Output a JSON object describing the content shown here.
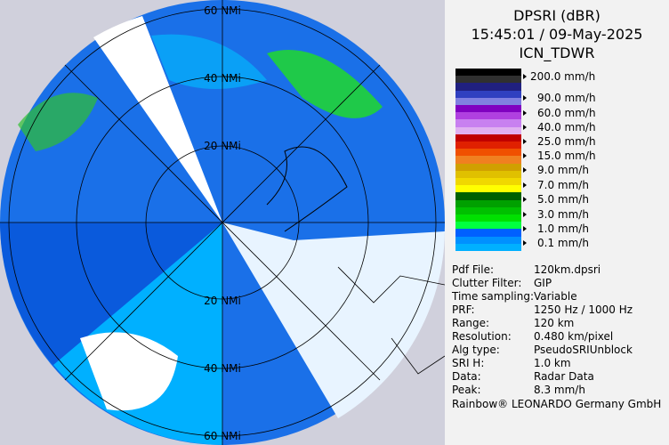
{
  "header": {
    "title": "DPSRI (dBR)",
    "time": "15:45:01 / 09-May-2025",
    "site": "ICN_TDWR"
  },
  "map": {
    "rings": [
      "20 NMi",
      "40 NMi",
      "60 NMi"
    ],
    "rings_south": [
      "20 NMi",
      "40 NMi",
      "60 NMi"
    ]
  },
  "legend": {
    "labels": [
      "200.0 mm/h",
      "90.0 mm/h",
      "60.0 mm/h",
      "40.0 mm/h",
      "25.0 mm/h",
      "15.0 mm/h",
      "9.0 mm/h",
      "7.0 mm/h",
      "5.0 mm/h",
      "3.0 mm/h",
      "1.0 mm/h",
      "0.1 mm/h"
    ],
    "swatches": [
      "#000000",
      "#303030",
      "#202080",
      "#3040c0",
      "#8080e0",
      "#8000c0",
      "#b040e0",
      "#c880f0",
      "#e0b0f0",
      "#c00000",
      "#e02000",
      "#f05000",
      "#f08020",
      "#d0a000",
      "#e0c000",
      "#f0d800",
      "#ffff00",
      "#006000",
      "#00a000",
      "#00c000",
      "#00e000",
      "#00ff40",
      "#0060ff",
      "#0090ff",
      "#00b0ff"
    ]
  },
  "info": [
    [
      "Pdf File:",
      "120km.dpsri"
    ],
    [
      "Clutter Filter:",
      "GIP"
    ],
    [
      "Time sampling:",
      "Variable"
    ],
    [
      "PRF:",
      "1250 Hz / 1000 Hz"
    ],
    [
      "Range:",
      "120 km"
    ],
    [
      "Resolution:",
      "0.480 km/pixel"
    ],
    [
      "Alg type:",
      "PseudoSRIUnblock"
    ],
    [
      "SRI H:",
      "1.0 km"
    ],
    [
      "Data:",
      "Radar Data"
    ],
    [
      "Peak:",
      "8.3 mm/h"
    ]
  ],
  "footer": "Rainbow® LEONARDO Germany GmbH"
}
